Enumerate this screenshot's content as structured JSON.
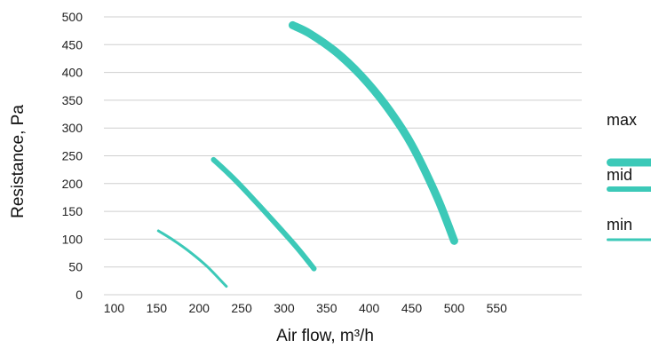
{
  "chart_data": {
    "type": "line",
    "xlabel": "Air flow, m³/h",
    "ylabel": "Resistance, Pa",
    "x_ticks": [
      100,
      150,
      200,
      250,
      300,
      350,
      400,
      450,
      500,
      550
    ],
    "y_ticks": [
      0,
      50,
      100,
      150,
      200,
      250,
      300,
      350,
      400,
      450,
      500
    ],
    "xlim": [
      88,
      650
    ],
    "ylim": [
      0,
      500
    ],
    "grid": "horizontal",
    "legend_position": "right",
    "series_color": "#3cc9b8",
    "series": [
      {
        "name": "max",
        "x": [
          310,
          330,
          360,
          390,
          420,
          450,
          480,
          500
        ],
        "y": [
          485,
          470,
          438,
          395,
          340,
          270,
          175,
          97
        ]
      },
      {
        "name": "mid",
        "x": [
          217,
          240,
          265,
          290,
          315,
          335
        ],
        "y": [
          243,
          210,
          170,
          128,
          85,
          47
        ]
      },
      {
        "name": "min",
        "x": [
          152,
          170,
          190,
          210,
          232
        ],
        "y": [
          115,
          98,
          76,
          50,
          15
        ]
      }
    ]
  }
}
